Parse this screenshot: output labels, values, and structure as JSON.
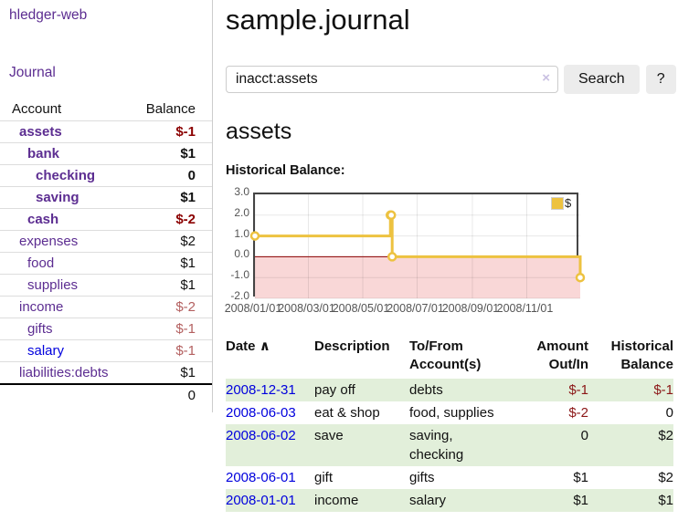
{
  "app": {
    "title": "hledger-web"
  },
  "colors": {
    "link_purple": "#5c2d91",
    "link_blue": "#0000dd",
    "negative_dark": "#8b0000",
    "negative_light": "#b35f5f",
    "negative_table": "#8b1717",
    "row_green": "#e2efda",
    "chart_line": "#edc240",
    "chart_negative_bg": "#f9d7d7",
    "chart_zero_line": "#8b0000",
    "button_bg": "#ececec"
  },
  "sidebar": {
    "journal_link": "Journal",
    "table": {
      "headers": {
        "account": "Account",
        "balance": "Balance"
      },
      "rows": [
        {
          "name": "assets",
          "balance": "$-1",
          "indent": 1,
          "bold": true,
          "neg": true,
          "link": "purple"
        },
        {
          "name": "bank",
          "balance": "$1",
          "indent": 2,
          "bold": true,
          "neg": false,
          "link": "purple"
        },
        {
          "name": "checking",
          "balance": "0",
          "indent": 3,
          "bold": true,
          "neg": false,
          "link": "purple"
        },
        {
          "name": "saving",
          "balance": "$1",
          "indent": 3,
          "bold": true,
          "neg": false,
          "link": "purple"
        },
        {
          "name": "cash",
          "balance": "$-2",
          "indent": 2,
          "bold": true,
          "neg": true,
          "link": "purple"
        },
        {
          "name": "expenses",
          "balance": "$2",
          "indent": 1,
          "bold": false,
          "neg": false,
          "link": "purple"
        },
        {
          "name": "food",
          "balance": "$1",
          "indent": 2,
          "bold": false,
          "neg": false,
          "link": "purple"
        },
        {
          "name": "supplies",
          "balance": "$1",
          "indent": 2,
          "bold": false,
          "neg": false,
          "link": "purple"
        },
        {
          "name": "income",
          "balance": "$-2",
          "indent": 1,
          "bold": false,
          "neg": true,
          "link": "purple"
        },
        {
          "name": "gifts",
          "balance": "$-1",
          "indent": 2,
          "bold": false,
          "neg": true,
          "link": "purple"
        },
        {
          "name": "salary",
          "balance": "$-1",
          "indent": 2,
          "bold": false,
          "neg": true,
          "link": "blue"
        },
        {
          "name": "liabilities:debts",
          "balance": "$1",
          "indent": 1,
          "bold": false,
          "neg": false,
          "link": "purple"
        }
      ],
      "total": "0"
    }
  },
  "header": {
    "title": "sample.journal"
  },
  "search": {
    "value": "inacct:assets",
    "clear_icon": "×",
    "button": "Search",
    "help_button": "?"
  },
  "account_page": {
    "title": "assets",
    "chart_label": "Historical Balance:"
  },
  "chart_data": {
    "type": "line",
    "step": true,
    "title": "Historical Balance",
    "series": [
      {
        "name": "$",
        "color": "#edc240",
        "points": [
          {
            "date": "2008-01-01",
            "balance": 1
          },
          {
            "date": "2008-06-01",
            "balance": 2
          },
          {
            "date": "2008-06-02",
            "balance": 2
          },
          {
            "date": "2008-06-03",
            "balance": 0
          },
          {
            "date": "2008-12-31",
            "balance": -1
          }
        ]
      }
    ],
    "x_range": [
      "2008-01-01",
      "2008-12-31"
    ],
    "x_tick_labels": [
      "2008/01/01",
      "2008/03/01",
      "2008/05/01",
      "2008/07/01",
      "2008/09/01",
      "2008/11/01"
    ],
    "y_ticks": [
      3.0,
      2.0,
      1.0,
      0.0,
      -1.0,
      -2.0
    ],
    "ylim": [
      -2.0,
      3.0
    ],
    "grid": true,
    "legend_position": "top-right",
    "negative_region_shaded": true
  },
  "register": {
    "headers": {
      "date": "Date",
      "sort_icon": "∧",
      "description": "Description",
      "tofrom": "To/From Account(s)",
      "amount": "Amount Out/In",
      "balance": "Historical Balance"
    },
    "rows": [
      {
        "date": "2008-12-31",
        "description": "pay off",
        "accounts": "debts",
        "amount": "$-1",
        "balance": "$-1",
        "amount_neg": true,
        "balance_neg": true,
        "shade": true
      },
      {
        "date": "2008-06-03",
        "description": "eat & shop",
        "accounts": "food, supplies",
        "amount": "$-2",
        "balance": "0",
        "amount_neg": true,
        "balance_neg": false,
        "shade": false
      },
      {
        "date": "2008-06-02",
        "description": "save",
        "accounts": "saving, checking",
        "amount": "0",
        "balance": "$2",
        "amount_neg": false,
        "balance_neg": false,
        "shade": true
      },
      {
        "date": "2008-06-01",
        "description": "gift",
        "accounts": "gifts",
        "amount": "$1",
        "balance": "$2",
        "amount_neg": false,
        "balance_neg": false,
        "shade": false
      },
      {
        "date": "2008-01-01",
        "description": "income",
        "accounts": "salary",
        "amount": "$1",
        "balance": "$1",
        "amount_neg": false,
        "balance_neg": false,
        "shade": true
      }
    ]
  }
}
